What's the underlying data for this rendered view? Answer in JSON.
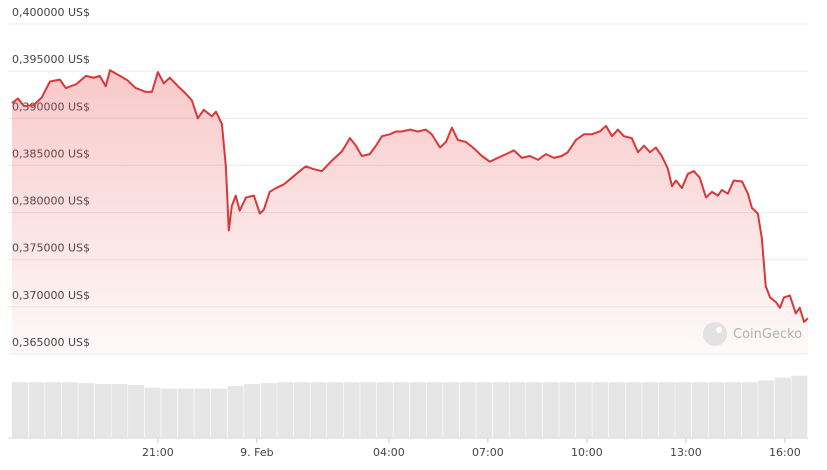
{
  "chart_data": {
    "type": "line",
    "watermark": "CoinGecko",
    "x": [
      16.58,
      16.76,
      16.94,
      17.24,
      17.48,
      17.73,
      18.03,
      18.21,
      18.52,
      18.82,
      19.06,
      19.24,
      19.42,
      19.55,
      19.85,
      20.09,
      20.33,
      20.64,
      20.82,
      21,
      21.18,
      21.36,
      21.61,
      21.85,
      22.03,
      22.21,
      22.39,
      22.64,
      22.76,
      22.94,
      23.06,
      23.15,
      23.24,
      23.36,
      23.48,
      23.67,
      23.91,
      24.09,
      24.21,
      24.39,
      24.58,
      24.82,
      25.06,
      25.3,
      25.48,
      25.73,
      25.97,
      26.27,
      26.58,
      26.82,
      27,
      27.18,
      27.42,
      27.61,
      27.79,
      28.03,
      28.21,
      28.39,
      28.64,
      28.88,
      29.12,
      29.3,
      29.55,
      29.73,
      29.91,
      30.09,
      30.33,
      30.58,
      30.82,
      31.06,
      31.3,
      31.55,
      31.79,
      32.03,
      32.27,
      32.52,
      32.76,
      33,
      33.24,
      33.42,
      33.67,
      33.91,
      34.15,
      34.39,
      34.58,
      34.76,
      34.94,
      35.12,
      35.36,
      35.55,
      35.73,
      35.91,
      36.09,
      36.27,
      36.45,
      36.58,
      36.7,
      36.88,
      37.06,
      37.24,
      37.42,
      37.61,
      37.79,
      37.97,
      38.09,
      38.27,
      38.45,
      38.7,
      38.88,
      39,
      39.18,
      39.3,
      39.42,
      39.55,
      39.73,
      39.85,
      39.97,
      40.15,
      40.33,
      40.45,
      40.58,
      40.7
    ],
    "series": [
      {
        "color": "#d9383a",
        "values": [
          0.3916,
          0.3921,
          0.3913,
          0.3914,
          0.3922,
          0.3939,
          0.3941,
          0.3932,
          0.3936,
          0.3945,
          0.3943,
          0.3945,
          0.3934,
          0.3951,
          0.3945,
          0.394,
          0.3932,
          0.3928,
          0.3928,
          0.3949,
          0.3937,
          0.3943,
          0.3934,
          0.3926,
          0.3919,
          0.39,
          0.3909,
          0.3902,
          0.3907,
          0.3894,
          0.3849,
          0.3781,
          0.3807,
          0.3818,
          0.3802,
          0.3816,
          0.3818,
          0.3799,
          0.3803,
          0.3822,
          0.3826,
          0.383,
          0.3837,
          0.3844,
          0.3849,
          0.3846,
          0.3844,
          0.3855,
          0.3865,
          0.3879,
          0.3871,
          0.386,
          0.3862,
          0.3871,
          0.3881,
          0.3883,
          0.3886,
          0.3886,
          0.3888,
          0.3886,
          0.3888,
          0.3883,
          0.3869,
          0.3875,
          0.389,
          0.3877,
          0.3875,
          0.3868,
          0.386,
          0.3854,
          0.3858,
          0.3862,
          0.3866,
          0.3858,
          0.386,
          0.3856,
          0.3862,
          0.3858,
          0.386,
          0.3864,
          0.3877,
          0.3883,
          0.3883,
          0.3886,
          0.3892,
          0.3881,
          0.3888,
          0.3881,
          0.3879,
          0.3864,
          0.3871,
          0.3864,
          0.3869,
          0.386,
          0.3847,
          0.3828,
          0.3834,
          0.3826,
          0.3841,
          0.3844,
          0.3837,
          0.3816,
          0.3822,
          0.3818,
          0.3824,
          0.382,
          0.3834,
          0.3833,
          0.382,
          0.3805,
          0.3799,
          0.3773,
          0.3722,
          0.371,
          0.3705,
          0.3699,
          0.371,
          0.3712,
          0.3693,
          0.3699,
          0.3684,
          0.3688
        ]
      }
    ],
    "volume": {
      "color": "#e6e6e6",
      "ylim": [
        0,
        70
      ],
      "values": [
        61,
        61,
        61,
        61,
        60,
        59,
        59,
        58,
        55,
        54,
        54,
        54,
        54,
        57,
        59,
        60,
        61,
        61,
        61,
        61,
        61,
        61,
        61,
        61,
        61,
        61,
        61,
        61,
        61,
        61,
        61,
        61,
        61,
        61,
        61,
        61,
        61,
        61,
        61,
        61,
        61,
        61,
        61,
        61,
        61,
        63,
        66,
        68
      ]
    },
    "xlim": [
      16.58,
      40.7
    ],
    "xticks": [
      {
        "value": 21,
        "label": "21:00"
      },
      {
        "value": 24,
        "label": "9. Feb"
      },
      {
        "value": 28,
        "label": "04:00"
      },
      {
        "value": 31,
        "label": "07:00"
      },
      {
        "value": 34,
        "label": "10:00"
      },
      {
        "value": 37,
        "label": "13:00"
      },
      {
        "value": 40,
        "label": "16:00"
      }
    ],
    "ylim": [
      0.365,
      0.4
    ],
    "yticks": [
      {
        "value": 0.4,
        "label": "0,400000 US$"
      },
      {
        "value": 0.395,
        "label": "0,395000 US$"
      },
      {
        "value": 0.39,
        "label": "0,390000 US$"
      },
      {
        "value": 0.385,
        "label": "0,385000 US$"
      },
      {
        "value": 0.38,
        "label": "0,380000 US$"
      },
      {
        "value": 0.375,
        "label": "0,375000 US$"
      },
      {
        "value": 0.37,
        "label": "0,370000 US$"
      },
      {
        "value": 0.365,
        "label": "0,365000 US$"
      }
    ],
    "grid": true
  }
}
